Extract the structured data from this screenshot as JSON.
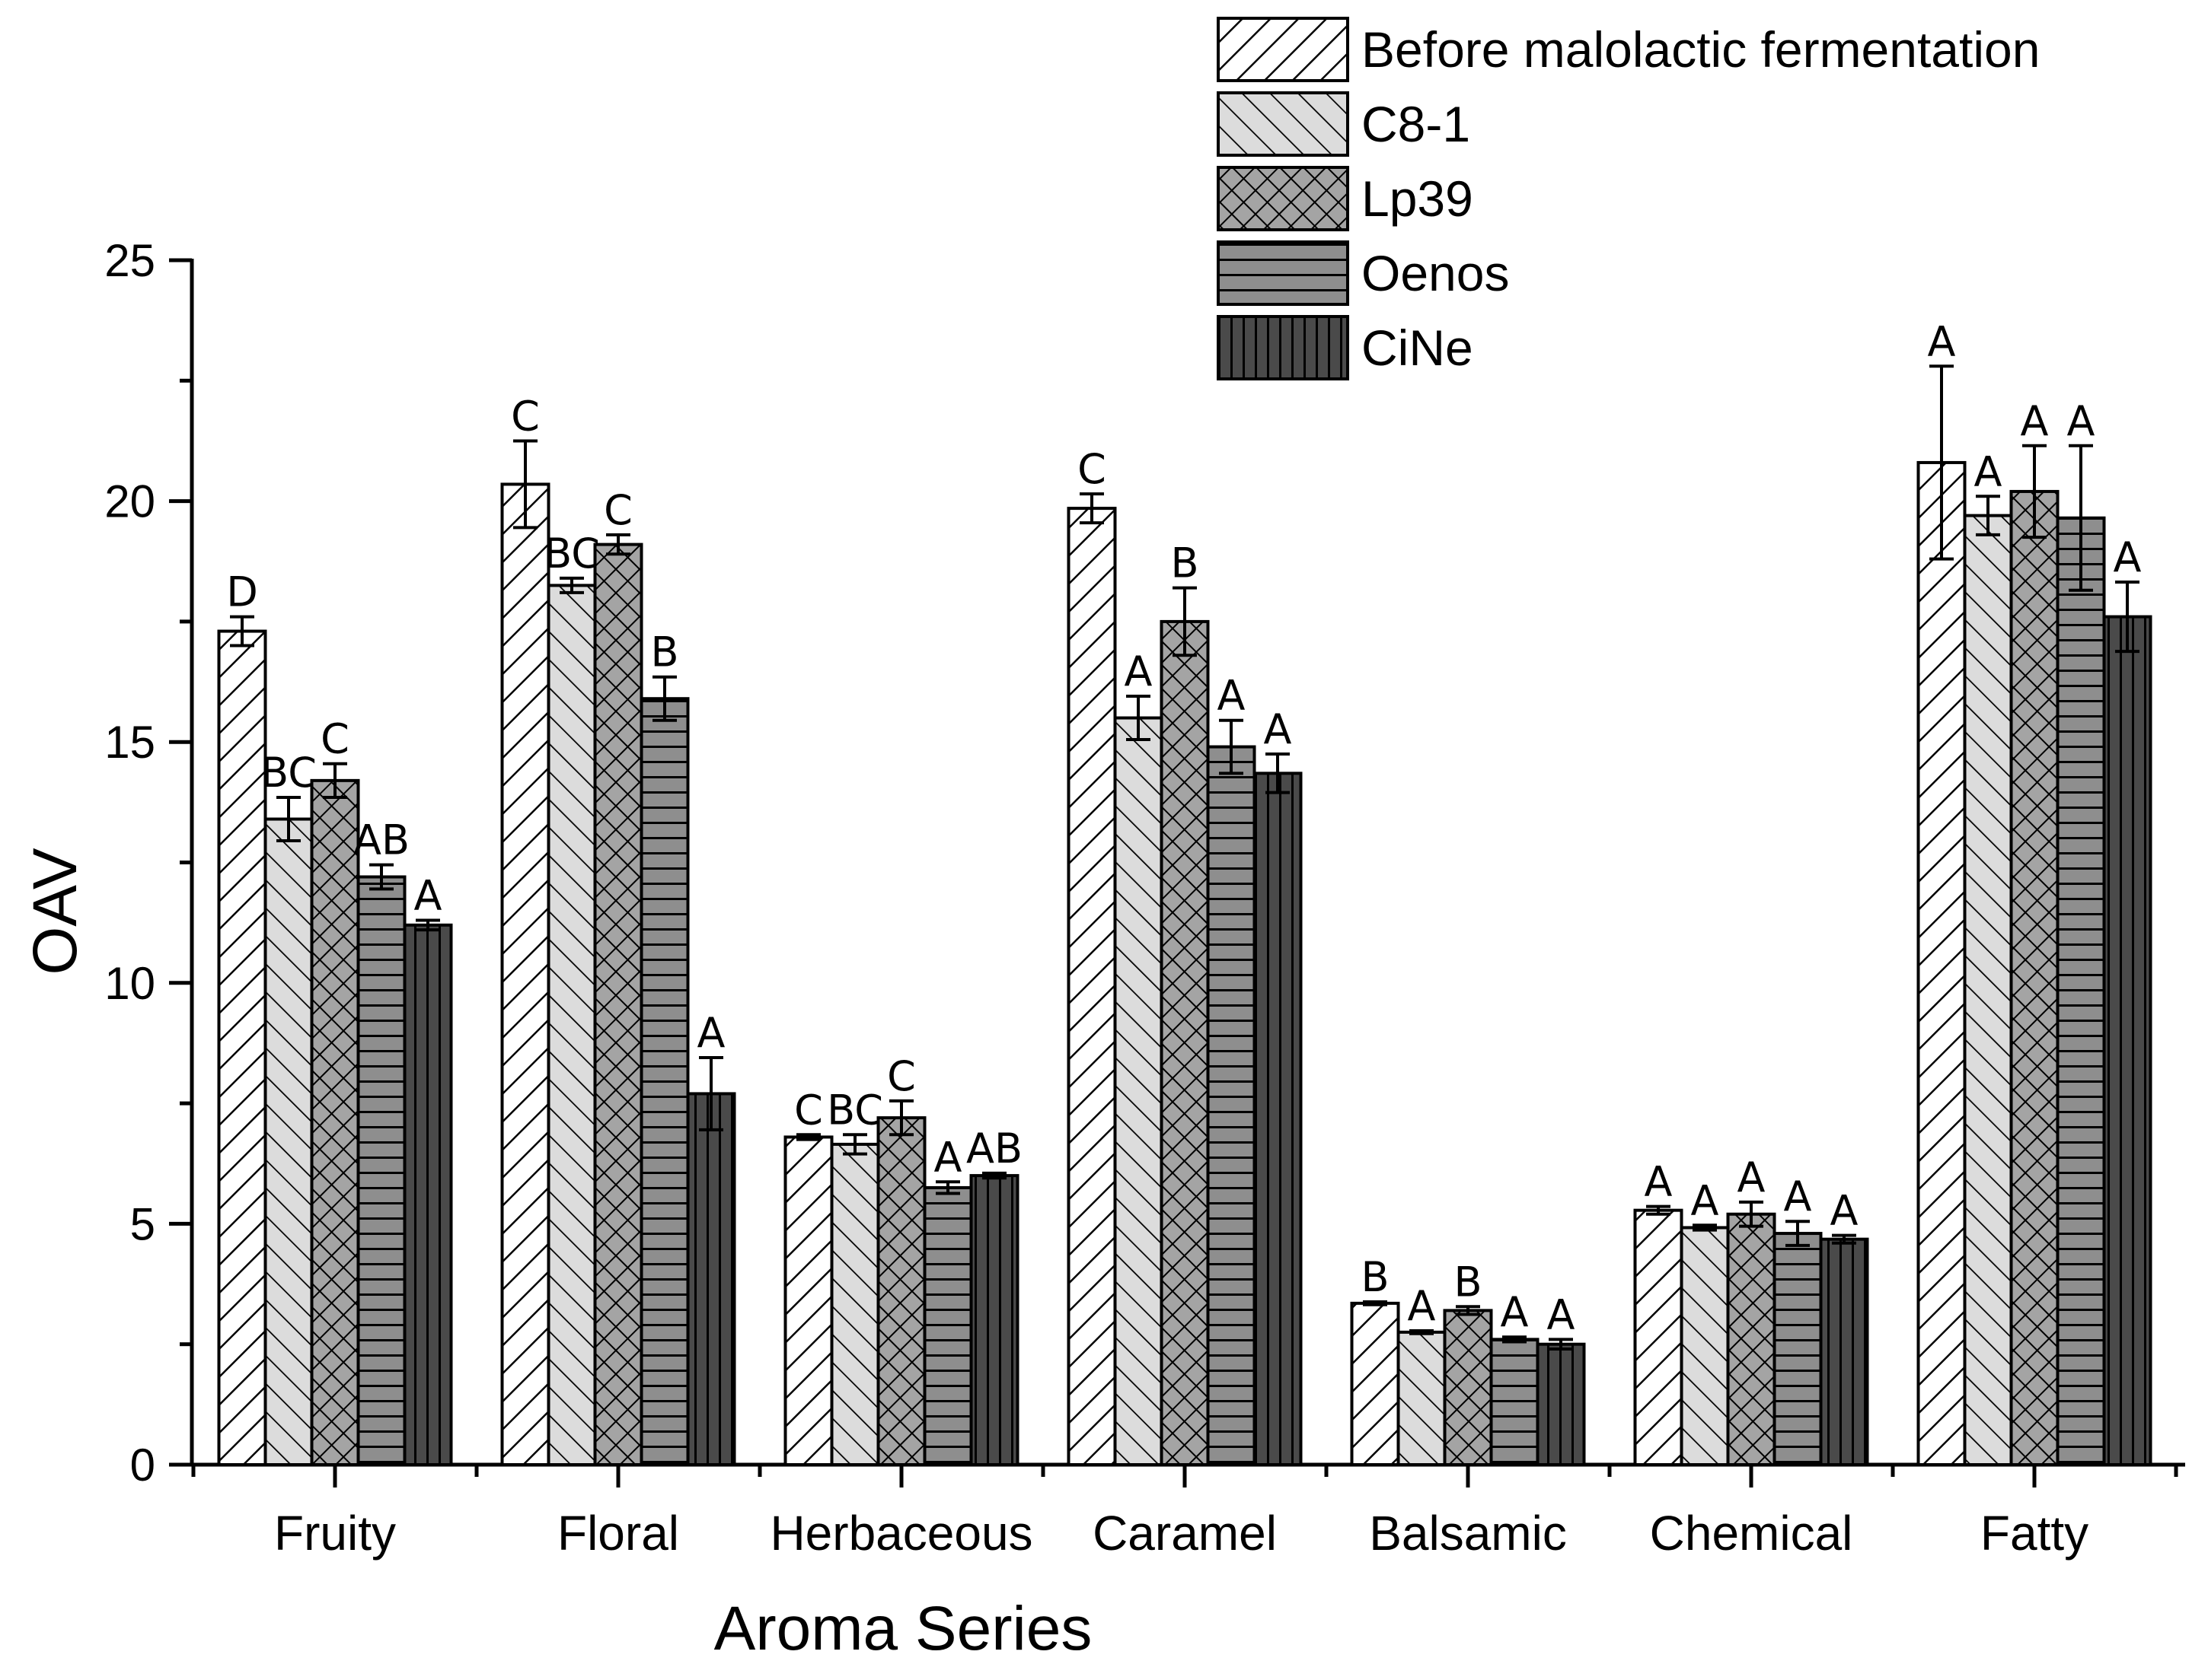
{
  "chart_data": {
    "type": "bar",
    "xlabel": "Aroma Series",
    "ylabel": "OAV",
    "ylim": [
      0,
      25
    ],
    "yticks": [
      0,
      5,
      10,
      15,
      20,
      25
    ],
    "grid": false,
    "legend_position": "top-right",
    "categories": [
      "Fruity",
      "Floral",
      "Herbaceous",
      "Caramel",
      "Balsamic",
      "Chemical",
      "Fatty"
    ],
    "series": [
      {
        "name": "Before malolactic fermentation",
        "pattern": "diag-right",
        "fill": "#ffffff",
        "values": [
          17.3,
          20.35,
          6.8,
          19.85,
          3.35,
          5.28,
          20.8
        ],
        "errors": [
          0.3,
          0.9,
          0.05,
          0.3,
          0.03,
          0.08,
          2.0
        ],
        "labels": [
          "D",
          "C",
          "C",
          "C",
          "B",
          "A",
          "A"
        ]
      },
      {
        "name": "C8-1",
        "pattern": "diag-left",
        "fill": "#dcdcdc",
        "values": [
          13.4,
          18.25,
          6.65,
          15.5,
          2.75,
          4.92,
          19.7
        ],
        "errors": [
          0.45,
          0.15,
          0.2,
          0.45,
          0.03,
          0.05,
          0.4
        ],
        "labels": [
          "BC",
          "BC",
          "BC",
          "A",
          "A",
          "A",
          "A"
        ]
      },
      {
        "name": "Lp39",
        "pattern": "crosshatch",
        "fill": "#9a9a9a",
        "values": [
          14.2,
          19.1,
          7.2,
          17.5,
          3.2,
          5.2,
          20.2
        ],
        "errors": [
          0.35,
          0.2,
          0.35,
          0.7,
          0.08,
          0.25,
          0.95
        ],
        "labels": [
          "C",
          "C",
          "C",
          "B",
          "B",
          "A",
          "A"
        ]
      },
      {
        "name": "Oenos",
        "pattern": "horizontal",
        "fill": "#8a8a8a",
        "values": [
          12.2,
          15.9,
          5.75,
          14.9,
          2.6,
          4.8,
          19.65
        ],
        "errors": [
          0.25,
          0.45,
          0.12,
          0.55,
          0.05,
          0.25,
          1.5
        ],
        "labels": [
          "AB",
          "B",
          "A",
          "A",
          "A",
          "A",
          "A"
        ]
      },
      {
        "name": "CiNe",
        "pattern": "vertical",
        "fill": "#4a4a4a",
        "values": [
          11.2,
          7.7,
          6.0,
          14.35,
          2.5,
          4.68,
          17.6
        ],
        "errors": [
          0.1,
          0.75,
          0.05,
          0.4,
          0.1,
          0.08,
          0.72
        ],
        "labels": [
          "A",
          "A",
          "AB",
          "A",
          "A",
          "A",
          "A"
        ]
      }
    ]
  }
}
